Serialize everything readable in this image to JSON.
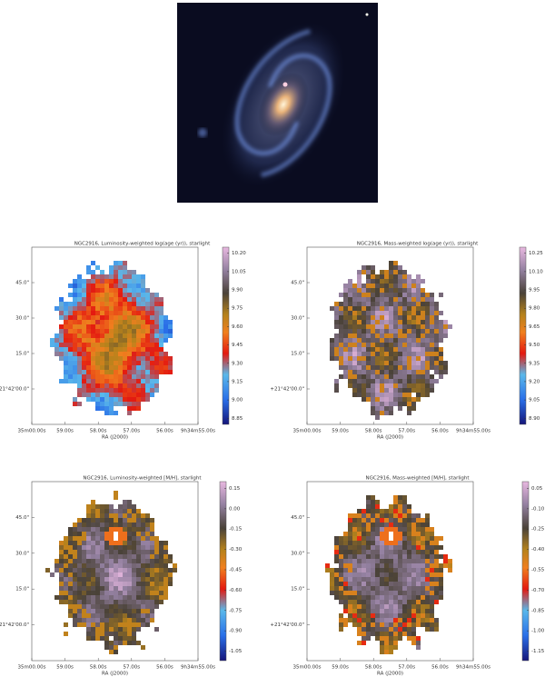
{
  "chart_data": [
    {
      "type": "heatmap",
      "title": "NGC2916, Luminosity-weighted log(age (yr)), starlight",
      "xlabel": "RA (J2000)",
      "xtick_labels": [
        "35m00.00s",
        "59.00s",
        "58.00s",
        "57.00s",
        "56.00s",
        "9h34m55.00s"
      ],
      "ytick_labels": [
        "45.0\"",
        "30.0\"",
        "15.0\"",
        "+21°42'00.0\""
      ],
      "colorbar": {
        "lim": [
          8.8,
          10.25
        ],
        "ticks": [
          {
            "value": 8.85,
            "label": "8.85"
          },
          {
            "value": 9,
            "label": "9.00"
          },
          {
            "value": 9.15,
            "label": "9.15"
          },
          {
            "value": 9.3,
            "label": "9.30"
          },
          {
            "value": 9.45,
            "label": "9.45"
          },
          {
            "value": 9.6,
            "label": "9.60"
          },
          {
            "value": 9.75,
            "label": "9.75"
          },
          {
            "value": 9.9,
            "label": "9.90"
          },
          {
            "value": 10.05,
            "label": "10.05"
          },
          {
            "value": 10.2,
            "label": "10.20"
          }
        ]
      }
    },
    {
      "type": "heatmap",
      "title": "NGC2916, Mass-weighted log(age (yr)), starlight",
      "xlabel": "RA (J2000)",
      "xtick_labels": [
        "35m00.00s",
        "59.00s",
        "58.00s",
        "57.00s",
        "56.00s",
        "9h34m55.00s"
      ],
      "ytick_labels": [
        "45.0\"",
        "30.0\"",
        "15.0\"",
        "+21°42'00.0\""
      ],
      "colorbar": {
        "lim": [
          8.85,
          10.3
        ],
        "ticks": [
          {
            "value": 8.9,
            "label": "8.90"
          },
          {
            "value": 9.05,
            "label": "9.05"
          },
          {
            "value": 9.2,
            "label": "9.20"
          },
          {
            "value": 9.35,
            "label": "9.35"
          },
          {
            "value": 9.5,
            "label": "9.50"
          },
          {
            "value": 9.65,
            "label": "9.65"
          },
          {
            "value": 9.8,
            "label": "9.80"
          },
          {
            "value": 9.95,
            "label": "9.95"
          },
          {
            "value": 10.1,
            "label": "10.10"
          },
          {
            "value": 10.25,
            "label": "10.25"
          }
        ]
      }
    },
    {
      "type": "heatmap",
      "title": "NGC2916, Luminosity-weighted [M/H], starlight",
      "xlabel": "RA (J2000)",
      "xtick_labels": [
        "35m00.00s",
        "59.00s",
        "58.00s",
        "57.00s",
        "56.00s",
        "9h34m55.00s"
      ],
      "ytick_labels": [
        "45.0\"",
        "30.0\"",
        "15.0\"",
        "+21°42'00.0\""
      ],
      "colorbar": {
        "lim": [
          -1.12,
          0.2
        ],
        "ticks": [
          {
            "value": -1.05,
            "label": "-1.05"
          },
          {
            "value": -0.9,
            "label": "-0.90"
          },
          {
            "value": -0.75,
            "label": "-0.75"
          },
          {
            "value": -0.6,
            "label": "-0.60"
          },
          {
            "value": -0.45,
            "label": "-0.45"
          },
          {
            "value": -0.3,
            "label": "-0.30"
          },
          {
            "value": -0.15,
            "label": "-0.15"
          },
          {
            "value": 0,
            "label": "0.00"
          },
          {
            "value": 0.15,
            "label": "0.15"
          }
        ]
      }
    },
    {
      "type": "heatmap",
      "title": "NGC2916, Mass-weighted [M/H], starlight",
      "xlabel": "RA (J2000)",
      "xtick_labels": [
        "35m00.00s",
        "59.00s",
        "58.00s",
        "57.00s",
        "56.00s",
        "9h34m55.00s"
      ],
      "ytick_labels": [
        "45.0\"",
        "30.0\"",
        "15.0\"",
        "+21°42'00.0\""
      ],
      "colorbar": {
        "lim": [
          -1.22,
          0.1
        ],
        "ticks": [
          {
            "value": -1.15,
            "label": "-1.15"
          },
          {
            "value": -1,
            "label": "-1.00"
          },
          {
            "value": -0.85,
            "label": "-0.85"
          },
          {
            "value": -0.7,
            "label": "-0.70"
          },
          {
            "value": -0.55,
            "label": "-0.55"
          },
          {
            "value": -0.4,
            "label": "-0.40"
          },
          {
            "value": -0.25,
            "label": "-0.25"
          },
          {
            "value": -0.1,
            "label": "-0.10"
          },
          {
            "value": 0.05,
            "label": "0.05"
          }
        ]
      }
    }
  ]
}
